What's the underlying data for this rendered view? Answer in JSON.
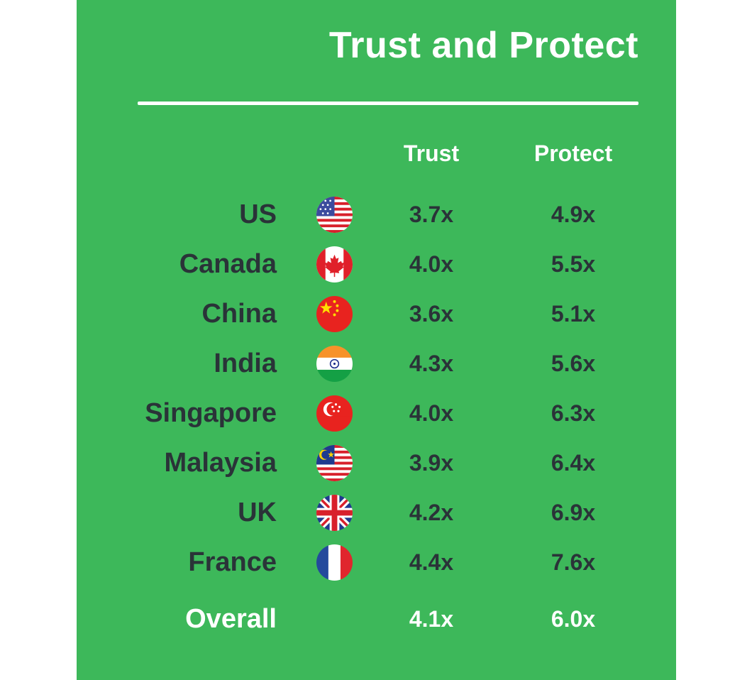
{
  "colors": {
    "background": "#3db85a",
    "header_text": "#ffffff",
    "body_text": "#2a3338"
  },
  "chart_data": {
    "type": "table",
    "title": "Trust and Protect",
    "columns": [
      "Trust",
      "Protect"
    ],
    "rows": [
      {
        "country": "US",
        "flag": "us-flag-icon",
        "trust": "3.7x",
        "protect": "4.9x"
      },
      {
        "country": "Canada",
        "flag": "canada-flag-icon",
        "trust": "4.0x",
        "protect": "5.5x"
      },
      {
        "country": "China",
        "flag": "china-flag-icon",
        "trust": "3.6x",
        "protect": "5.1x"
      },
      {
        "country": "India",
        "flag": "india-flag-icon",
        "trust": "4.3x",
        "protect": "5.6x"
      },
      {
        "country": "Singapore",
        "flag": "singapore-flag-icon",
        "trust": "4.0x",
        "protect": "6.3x"
      },
      {
        "country": "Malaysia",
        "flag": "malaysia-flag-icon",
        "trust": "3.9x",
        "protect": "6.4x"
      },
      {
        "country": "UK",
        "flag": "uk-flag-icon",
        "trust": "4.2x",
        "protect": "6.9x"
      },
      {
        "country": "France",
        "flag": "france-flag-icon",
        "trust": "4.4x",
        "protect": "7.6x"
      }
    ],
    "overall": {
      "label": "Overall",
      "trust": "4.1x",
      "protect": "6.0x"
    }
  }
}
